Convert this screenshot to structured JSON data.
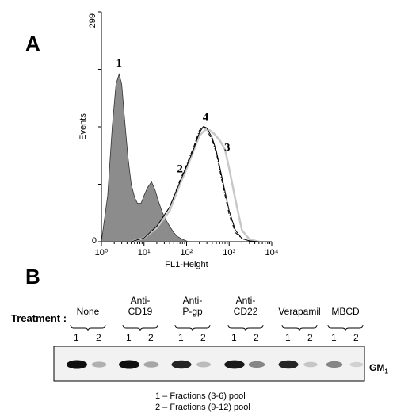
{
  "panel_a_label": "A",
  "panel_b_label": "B",
  "chart_data": {
    "type": "area",
    "title": "",
    "xlabel": "FL1-Height",
    "ylabel": "Events",
    "xscale": "log",
    "xlim": [
      1,
      10000
    ],
    "ylim": [
      0,
      299
    ],
    "y_top_label": "299",
    "y_bottom_label": "0",
    "x_tick_labels": [
      "10⁰",
      "10¹",
      "10²",
      "10³",
      "10⁴"
    ],
    "x_tick_values": [
      1,
      10,
      100,
      1000,
      10000
    ],
    "series": [
      {
        "name": "1",
        "style": "filled-gray",
        "color": "#8c8c8c",
        "x": [
          1,
          1.4,
          1.8,
          2.2,
          2.6,
          3.0,
          3.5,
          4.2,
          5,
          6,
          7,
          8.5,
          10,
          12,
          15,
          18,
          22,
          27,
          33,
          40,
          50,
          60,
          75,
          90,
          110
        ],
        "y": [
          0,
          60,
          150,
          205,
          218,
          205,
          160,
          110,
          75,
          58,
          50,
          50,
          60,
          70,
          78,
          68,
          52,
          38,
          28,
          20,
          12,
          7,
          4,
          2,
          0
        ]
      },
      {
        "name": "2",
        "style": "dash-dot",
        "color": "#000000",
        "x": [
          5,
          10,
          20,
          40,
          70,
          100,
          150,
          200,
          250,
          300,
          400,
          500,
          700,
          1000,
          1400,
          2000,
          3000,
          5000
        ],
        "y": [
          0,
          5,
          20,
          45,
          80,
          100,
          125,
          145,
          150,
          145,
          132,
          115,
          75,
          35,
          12,
          4,
          1,
          0
        ]
      },
      {
        "name": "3",
        "style": "solid-light-gray",
        "color": "#c8c8c8",
        "x": [
          5,
          10,
          20,
          40,
          70,
          100,
          150,
          200,
          280,
          350,
          450,
          600,
          800,
          1000,
          1400,
          2000,
          3000,
          5000
        ],
        "y": [
          0,
          5,
          18,
          40,
          75,
          95,
          120,
          138,
          146,
          145,
          140,
          132,
          120,
          95,
          55,
          15,
          3,
          0
        ]
      },
      {
        "name": "4",
        "style": "solid-black",
        "color": "#000000",
        "x": [
          5,
          10,
          20,
          40,
          70,
          100,
          150,
          200,
          250,
          300,
          400,
          500,
          700,
          1000,
          1400,
          2000,
          3000,
          5000
        ],
        "y": [
          0,
          5,
          20,
          45,
          78,
          98,
          122,
          142,
          150,
          148,
          135,
          118,
          80,
          40,
          15,
          4,
          1,
          0
        ]
      }
    ],
    "peak_labels": [
      {
        "text": "1",
        "x": 2.6,
        "y": 228
      },
      {
        "text": "4",
        "x": 280,
        "y": 157
      },
      {
        "text": "3",
        "x": 900,
        "y": 118
      },
      {
        "text": "2",
        "x": 70,
        "y": 90
      }
    ]
  },
  "blot": {
    "treatment_label": "Treatment :",
    "groups": [
      {
        "label": "None",
        "lanes": [
          "1",
          "2"
        ]
      },
      {
        "label": "Anti-\nCD19",
        "lanes": [
          "1",
          "2"
        ]
      },
      {
        "label": "Anti-\nP-gp",
        "lanes": [
          "1",
          "2"
        ]
      },
      {
        "label": "Anti-\nCD22",
        "lanes": [
          "1",
          "2"
        ]
      },
      {
        "label": "Verapamil",
        "lanes": [
          "1",
          "2"
        ]
      },
      {
        "label": "MBCD",
        "lanes": [
          "1",
          "2"
        ]
      }
    ],
    "band_label": "GM",
    "band_label_sub": "1",
    "band_intensity": [
      1.0,
      0.25,
      1.0,
      0.3,
      0.9,
      0.2,
      0.95,
      0.45,
      0.9,
      0.15,
      0.45,
      0.1
    ],
    "legend": [
      "1 – Fractions (3-6) pool",
      "2 – Fractions (9-12) pool"
    ]
  }
}
